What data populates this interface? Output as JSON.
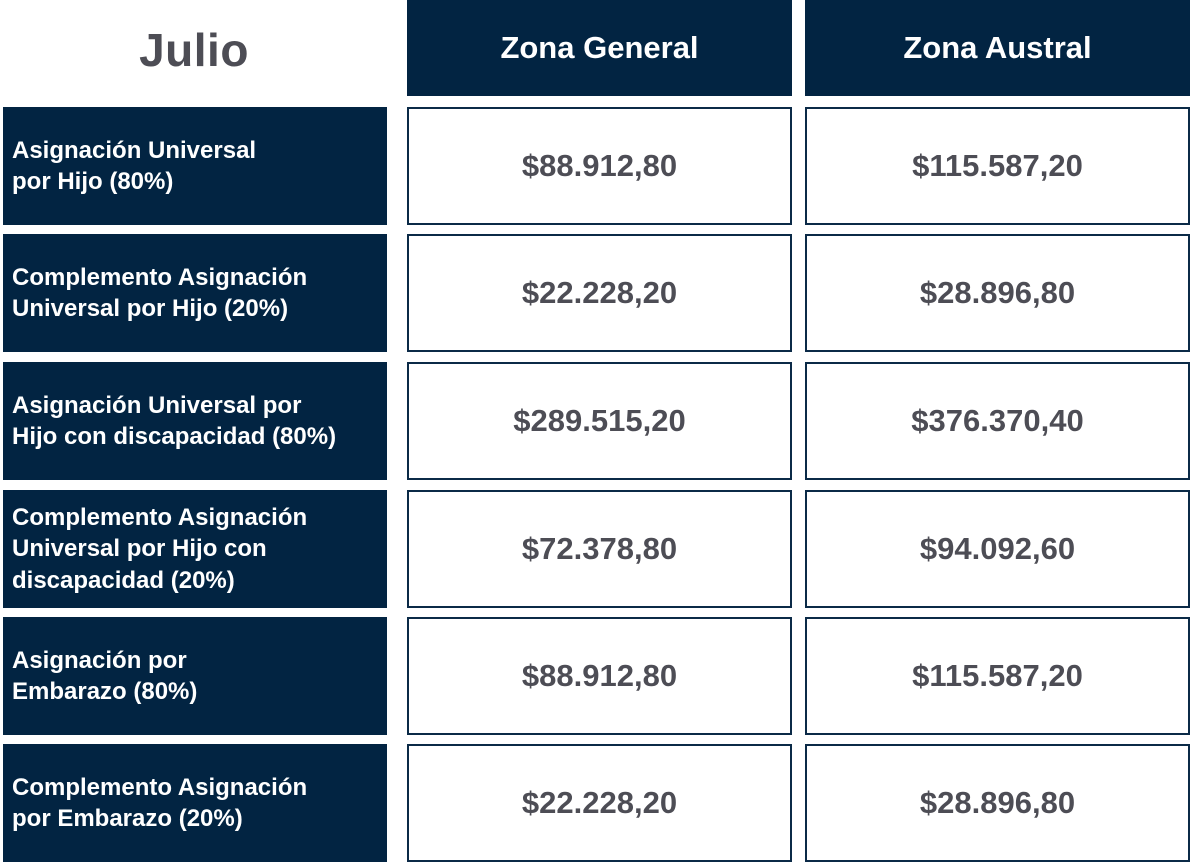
{
  "header": {
    "month": "Julio",
    "columns": [
      "Zona General",
      "Zona Austral"
    ]
  },
  "rows": [
    {
      "label_lines": [
        "Asignación Universal",
        "por Hijo (80%)"
      ],
      "general": "$88.912,80",
      "austral": "$115.587,20"
    },
    {
      "label_lines": [
        "Complemento Asignación",
        "Universal por Hijo (20%)"
      ],
      "general": "$22.228,20",
      "austral": "$28.896,80"
    },
    {
      "label_lines": [
        "Asignación Universal por",
        "Hijo con discapacidad (80%)"
      ],
      "general": "$289.515,20",
      "austral": "$376.370,40"
    },
    {
      "label_lines": [
        "Complemento Asignación",
        "Universal por Hijo con",
        "discapacidad (20%)"
      ],
      "general": "$72.378,80",
      "austral": "$94.092,60"
    },
    {
      "label_lines": [
        "Asignación por",
        "Embarazo (80%)"
      ],
      "general": "$88.912,80",
      "austral": "$115.587,20"
    },
    {
      "label_lines": [
        "Complemento Asignación",
        "por Embarazo (20%)"
      ],
      "general": "$22.228,20",
      "austral": "$28.896,80"
    }
  ],
  "colors": {
    "header_bg": "#022442",
    "value_text": "#4d4d55"
  }
}
